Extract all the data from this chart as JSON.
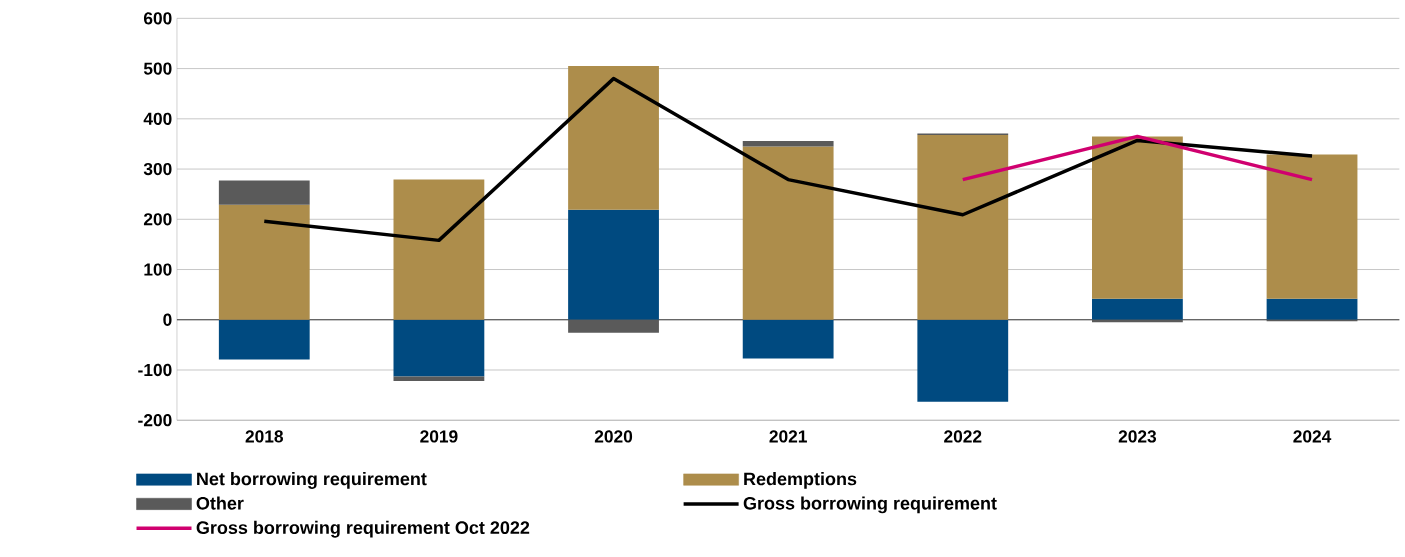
{
  "chart_data": {
    "type": "bar",
    "stacked": true,
    "categories": [
      "2018",
      "2019",
      "2020",
      "2021",
      "2022",
      "2023",
      "2024"
    ],
    "series": [
      {
        "name": "Net borrowing requirement",
        "color": "#004A80",
        "values": [
          -79,
          -113,
          219,
          -77,
          -163,
          42,
          42
        ]
      },
      {
        "name": "Redemptions",
        "color": "#AD8D4B",
        "values": [
          229,
          279,
          286,
          345,
          368,
          323,
          287
        ]
      },
      {
        "name": "Other",
        "color": "#5A5A5A",
        "values": [
          48,
          -9,
          -26,
          11,
          3,
          -5,
          -3
        ]
      },
      {
        "name": "Gross borrowing requirement",
        "type": "line",
        "color": "#000000",
        "values": [
          196,
          158,
          480,
          279,
          209,
          357,
          326
        ]
      },
      {
        "name": "Gross borrowing requirement Oct 2022",
        "type": "line",
        "color": "#D0006F",
        "values": [
          null,
          null,
          null,
          null,
          279,
          365,
          279
        ]
      }
    ],
    "ylim": [
      -200,
      600
    ],
    "yticks": [
      -200,
      -100,
      0,
      100,
      200,
      300,
      400,
      500,
      600
    ],
    "grid": "y",
    "legend": "bottom",
    "marker": "none"
  }
}
